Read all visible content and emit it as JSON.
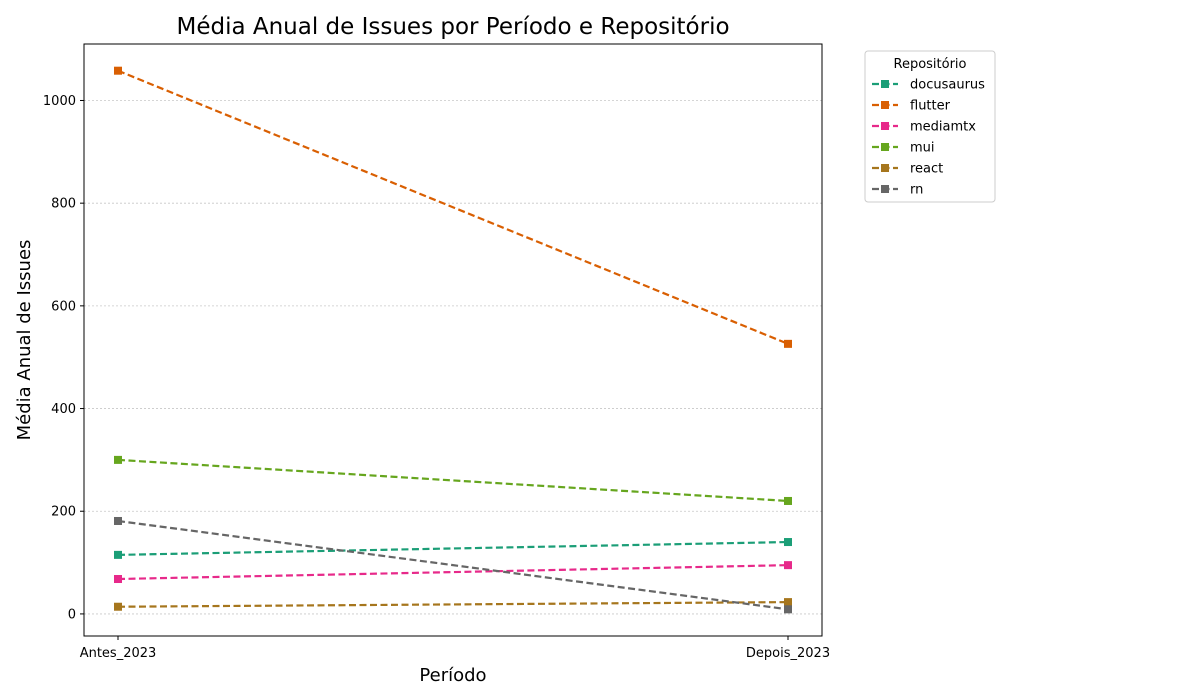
{
  "chart_data": {
    "type": "line",
    "title": "Média Anual de Issues por Período e Repositório",
    "xlabel": "Período",
    "ylabel": "Média Anual de Issues",
    "categories": [
      "Antes_2023",
      "Depois_2023"
    ],
    "ylim": [
      -43,
      1110
    ],
    "yticks": [
      0,
      200,
      400,
      600,
      800,
      1000
    ],
    "grid": "horizontal, dotted",
    "line_style": "dashed",
    "marker": "square",
    "legend": {
      "title": "Repositório",
      "position": "outside-right-top"
    },
    "series": [
      {
        "name": "docusaurus",
        "color": "#1b9e77",
        "values": [
          115,
          140
        ]
      },
      {
        "name": "flutter",
        "color": "#d95f02",
        "values": [
          1058,
          526
        ]
      },
      {
        "name": "mediamtx",
        "color": "#e7298a",
        "values": [
          68,
          95
        ]
      },
      {
        "name": "mui",
        "color": "#66a61e",
        "values": [
          300,
          220
        ]
      },
      {
        "name": "react",
        "color": "#a6761d",
        "values": [
          14,
          23
        ]
      },
      {
        "name": "rn",
        "color": "#666666",
        "values": [
          181,
          9
        ]
      }
    ]
  }
}
